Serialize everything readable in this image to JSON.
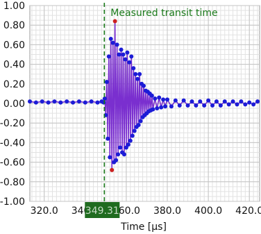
{
  "chart_data": {
    "type": "line",
    "title": "",
    "xlabel": "Time [µs]",
    "ylabel": "",
    "xlim": [
      313,
      425
    ],
    "ylim": [
      -1.0,
      1.0
    ],
    "grid": true,
    "x_tick_labels": [
      "320.0",
      "340.0",
      "360.0",
      "380.0",
      "400.0",
      "420.0"
    ],
    "x_ticks": [
      320,
      340,
      360,
      380,
      400,
      420
    ],
    "y_tick_labels": [
      "1.00",
      "0.80",
      "0.60",
      "0.40",
      "0.20",
      "0.00",
      "-0.20",
      "-0.40",
      "-0.60",
      "-0.80",
      "-1.00"
    ],
    "y_ticks": [
      1.0,
      0.8,
      0.6,
      0.4,
      0.2,
      0.0,
      -0.2,
      -0.4,
      -0.6,
      -0.8,
      -1.0
    ],
    "series": [
      {
        "color": "#7a2fcf",
        "marker_colors": [
          "#1c1cd6",
          "#cc2020"
        ],
        "x": [
          313,
          316,
          319,
          322,
          325,
          328,
          331,
          334,
          337,
          340,
          343,
          346,
          348,
          349,
          349.5,
          350,
          350.5,
          351,
          351.5,
          352,
          352.5,
          353,
          353.5,
          354,
          354.5,
          355,
          355.5,
          356,
          356.5,
          357,
          357.5,
          358,
          358.5,
          359,
          359.5,
          360,
          360.5,
          361,
          361.5,
          362,
          362.5,
          363,
          363.5,
          364,
          364.5,
          365,
          365.5,
          366,
          366.5,
          367,
          367.5,
          368,
          368.5,
          369,
          369.5,
          370,
          370.5,
          371,
          371.5,
          372,
          372.5,
          373,
          374,
          375,
          376,
          377,
          378,
          379,
          380,
          382,
          384,
          386,
          388,
          390,
          392,
          394,
          396,
          398,
          400,
          402,
          404,
          406,
          408,
          410,
          412,
          414,
          416,
          418,
          420,
          422,
          424
        ],
        "y": [
          0.02,
          0.01,
          0.02,
          0.01,
          0.02,
          0.01,
          0.02,
          0.01,
          0.02,
          0.01,
          0.02,
          0.01,
          0.02,
          0.01,
          0.05,
          -0.12,
          0.22,
          -0.36,
          0.48,
          -0.55,
          0.66,
          -0.68,
          0.62,
          -0.6,
          0.84,
          -0.58,
          0.6,
          -0.52,
          0.5,
          -0.45,
          0.55,
          -0.5,
          0.5,
          -0.52,
          0.45,
          -0.45,
          0.52,
          -0.42,
          0.42,
          -0.38,
          0.48,
          -0.33,
          0.36,
          -0.28,
          0.3,
          -0.24,
          0.25,
          -0.22,
          0.3,
          -0.18,
          0.2,
          -0.14,
          0.18,
          -0.12,
          0.13,
          -0.1,
          0.12,
          -0.08,
          0.1,
          -0.07,
          0.08,
          -0.06,
          0.05,
          -0.05,
          0.06,
          -0.04,
          0.04,
          -0.03,
          0.04,
          -0.03,
          0.03,
          -0.02,
          0.03,
          -0.02,
          0.02,
          -0.02,
          0.02,
          -0.02,
          0.03,
          -0.02,
          0.02,
          -0.02,
          0.02,
          -0.01,
          0.02,
          -0.01,
          0.02,
          -0.01,
          0.01,
          -0.01,
          0.02
        ]
      }
    ],
    "annotation": {
      "label": "Measured transit time",
      "value_label": "349.31",
      "x": 349.31,
      "line_color": "#1a7a1a",
      "label_color": "#1a7a1a",
      "marker_bg": "#1f6b1f",
      "marker_text_color": "#c8dcc8"
    }
  }
}
